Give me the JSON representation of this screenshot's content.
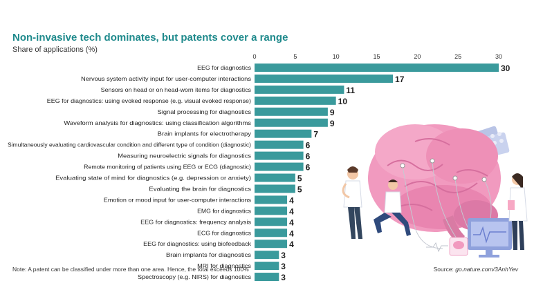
{
  "header": {
    "title": "Non-invasive tech dominates, but patents cover a range",
    "subtitle": "Share of applications (%)"
  },
  "footer": {
    "note": "Note: A patent can be classified under more than one area. Hence, the total exceeds 100%",
    "source_label": "Source: ",
    "source_link": "go.nature.com/3AnhYev"
  },
  "colors": {
    "bar": "#3a9a9c",
    "title": "#1f8a8c"
  },
  "chart_data": {
    "type": "bar",
    "orientation": "horizontal",
    "title": "Non-invasive tech dominates, but patents cover a range",
    "xlabel": "Share of applications (%)",
    "xlim": [
      0,
      30
    ],
    "xticks": [
      0,
      5,
      10,
      15,
      20,
      25,
      30
    ],
    "grid": false,
    "categories": [
      "EEG for diagnostics",
      "Nervous system activity input for user-computer interactions",
      "Sensors on head or on head-worn items for diagnostics",
      "EEG for diagnostics: using evoked response (e.g. visual evoked response)",
      "Signal processing for diagnostics",
      "Waveform analysis for diagnostics: using classification algorithms",
      "Brain implants for electrotherapy",
      "Simultaneously evaluating cardiovascular condition and different type of condition (diagnostic)",
      "Measuring neuroelectric signals for diagnostics",
      "Remote monitoring of patients using EEG or ECG (diagnostic)",
      "Evaluating state of mind for diagnostics (e.g. depression or anxiety)",
      "Evaluating the brain for diagnostics",
      "Emotion or mood input for user-computer interactions",
      "EMG for diagnostics",
      "EEG for diagnostics: frequency analysis",
      "ECG for diagnostics",
      "EEG for diagnostics: using biofeedback",
      "Brain implants for diagnostics",
      "MRI for diagnostics",
      "Spectroscopy (e.g. NIRS) for diagnostics"
    ],
    "values": [
      30,
      17,
      11,
      10,
      9,
      9,
      7,
      6,
      6,
      6,
      5,
      5,
      4,
      4,
      4,
      4,
      4,
      3,
      3,
      3
    ]
  }
}
